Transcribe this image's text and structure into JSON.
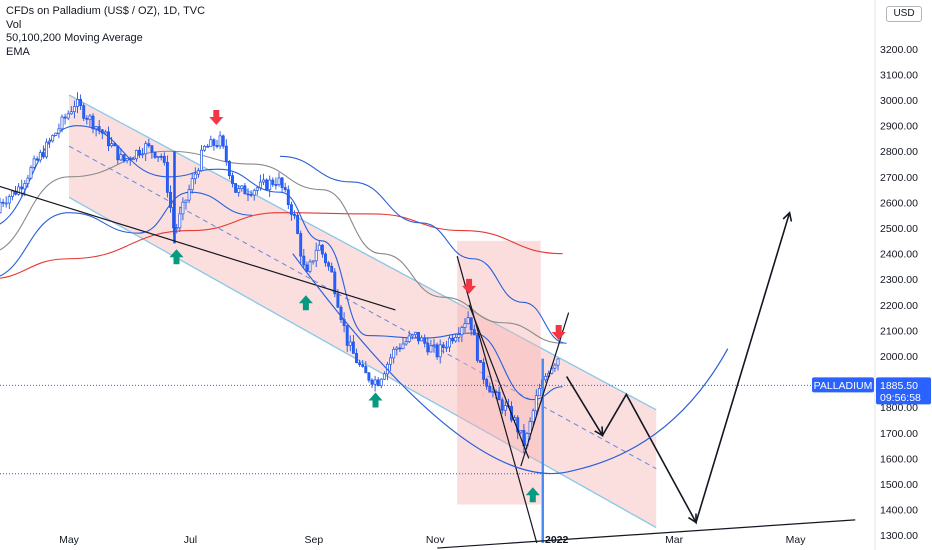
{
  "legend": {
    "title": "CFDs on Palladium (US$ / OZ), 1D, TVC",
    "vol": "Vol",
    "ma": "50,100,200 Moving Average",
    "ema": "EMA"
  },
  "currency_badge": "USD",
  "colors": {
    "up": "#2962ff",
    "down": "#2962ff",
    "channel_fill": "#f9d4d4",
    "channel_line": "#88c6e8",
    "ma_red": "#e53935",
    "ma_grey": "#8a8a8a",
    "ema_blue": "#2b5fd9",
    "arrow_red": "#f23645",
    "arrow_green": "#089981",
    "price_badge": "#2962ff"
  },
  "chart_data": {
    "type": "candlestick",
    "title": "CFDs on Palladium (US$ / OZ), 1D, TVC",
    "ylim": [
      1270,
      3340
    ],
    "y_ticks": [
      "3200.00",
      "3100.00",
      "3000.00",
      "2900.00",
      "2800.00",
      "2700.00",
      "2600.00",
      "2500.00",
      "2400.00",
      "2300.00",
      "2200.00",
      "2100.00",
      "2000.00",
      "1900.00",
      "1800.00",
      "1700.00",
      "1600.00",
      "1500.00",
      "1400.00",
      "1300.00"
    ],
    "x_ticks": [
      "May",
      "Jul",
      "Sep",
      "Nov",
      "2022",
      "Mar",
      "May"
    ],
    "last_price": {
      "label": "PALLADIUM",
      "value": "1885.50",
      "countdown": "09:56:58"
    },
    "level_line": 1540,
    "price_keypoints": [
      {
        "date": "2021-03-20",
        "price": 2560
      },
      {
        "date": "2021-04-05",
        "price": 2650
      },
      {
        "date": "2021-04-20",
        "price": 2820
      },
      {
        "date": "2021-05-04",
        "price": 2990
      },
      {
        "date": "2021-05-18",
        "price": 2870
      },
      {
        "date": "2021-05-28",
        "price": 2760
      },
      {
        "date": "2021-06-08",
        "price": 2820
      },
      {
        "date": "2021-06-17",
        "price": 2780
      },
      {
        "date": "2021-06-23",
        "price": 2480
      },
      {
        "date": "2021-06-30",
        "price": 2640
      },
      {
        "date": "2021-07-08",
        "price": 2810
      },
      {
        "date": "2021-07-16",
        "price": 2840
      },
      {
        "date": "2021-07-24",
        "price": 2640
      },
      {
        "date": "2021-08-05",
        "price": 2660
      },
      {
        "date": "2021-08-14",
        "price": 2690
      },
      {
        "date": "2021-08-22",
        "price": 2550
      },
      {
        "date": "2021-08-28",
        "price": 2300
      },
      {
        "date": "2021-09-03",
        "price": 2440
      },
      {
        "date": "2021-09-10",
        "price": 2320
      },
      {
        "date": "2021-09-18",
        "price": 2050
      },
      {
        "date": "2021-09-26",
        "price": 1930
      },
      {
        "date": "2021-10-03",
        "price": 1900
      },
      {
        "date": "2021-10-12",
        "price": 2030
      },
      {
        "date": "2021-10-22",
        "price": 2080
      },
      {
        "date": "2021-11-02",
        "price": 2010
      },
      {
        "date": "2021-11-12",
        "price": 2100
      },
      {
        "date": "2021-11-18",
        "price": 2160
      },
      {
        "date": "2021-11-24",
        "price": 1940
      },
      {
        "date": "2021-12-02",
        "price": 1830
      },
      {
        "date": "2021-12-10",
        "price": 1760
      },
      {
        "date": "2021-12-16",
        "price": 1650
      },
      {
        "date": "2021-12-22",
        "price": 1840
      },
      {
        "date": "2021-12-28",
        "price": 1950
      },
      {
        "date": "2022-01-03",
        "price": 2010
      }
    ],
    "ma200": [
      {
        "date": "2021-03-20",
        "price": 2300
      },
      {
        "date": "2021-05-01",
        "price": 2380
      },
      {
        "date": "2021-07-01",
        "price": 2490
      },
      {
        "date": "2021-08-15",
        "price": 2560
      },
      {
        "date": "2021-10-01",
        "price": 2555
      },
      {
        "date": "2021-11-15",
        "price": 2490
      },
      {
        "date": "2022-01-04",
        "price": 2400
      }
    ],
    "ma100": [
      {
        "date": "2021-03-20",
        "price": 2400
      },
      {
        "date": "2021-05-01",
        "price": 2700
      },
      {
        "date": "2021-06-20",
        "price": 2800
      },
      {
        "date": "2021-08-01",
        "price": 2750
      },
      {
        "date": "2021-09-05",
        "price": 2650
      },
      {
        "date": "2021-10-05",
        "price": 2400
      },
      {
        "date": "2021-11-05",
        "price": 2230
      },
      {
        "date": "2021-12-05",
        "price": 2130
      },
      {
        "date": "2022-01-04",
        "price": 2050
      }
    ],
    "ema": [
      {
        "date": "2021-03-20",
        "price": 2500
      },
      {
        "date": "2021-05-05",
        "price": 2900
      },
      {
        "date": "2021-06-20",
        "price": 2700
      },
      {
        "date": "2021-07-15",
        "price": 2730
      },
      {
        "date": "2021-08-15",
        "price": 2640
      },
      {
        "date": "2021-09-05",
        "price": 2450
      },
      {
        "date": "2021-09-28",
        "price": 2080
      },
      {
        "date": "2021-10-25",
        "price": 2070
      },
      {
        "date": "2021-11-20",
        "price": 2090
      },
      {
        "date": "2021-12-20",
        "price": 1830
      },
      {
        "date": "2022-01-04",
        "price": 1880
      }
    ],
    "ema_upper": [
      {
        "date": "2021-08-15",
        "price": 2780
      },
      {
        "date": "2021-09-20",
        "price": 2680
      },
      {
        "date": "2021-10-25",
        "price": 2520
      },
      {
        "date": "2021-11-20",
        "price": 2380
      },
      {
        "date": "2021-12-15",
        "price": 2210
      },
      {
        "date": "2022-01-06",
        "price": 2050
      }
    ],
    "ema_lower_curve": [
      {
        "date": "2021-03-20",
        "price": 2300
      },
      {
        "date": "2021-05-01",
        "price": 2560
      },
      {
        "date": "2021-06-05",
        "price": 2480
      },
      {
        "date": "2021-07-01",
        "price": 2640
      },
      {
        "date": "2021-08-01",
        "price": 2550
      }
    ],
    "channel": {
      "upper_start": {
        "date": "2021-05-01",
        "price": 3020
      },
      "upper_end": {
        "date": "2022-02-20",
        "price": 1790
      },
      "lower_start": {
        "date": "2021-05-01",
        "price": 2620
      },
      "lower_end": {
        "date": "2022-02-20",
        "price": 1330
      }
    },
    "trendlines": [
      {
        "from": {
          "date": "2021-03-20",
          "price": 2680
        },
        "to": {
          "date": "2021-10-12",
          "price": 2180
        }
      },
      {
        "from": {
          "date": "2021-11-02",
          "price": 1250
        },
        "to": {
          "date": "2022-05-31",
          "price": 1360
        }
      }
    ],
    "projection_path": [
      {
        "date": "2022-01-06",
        "price": 1920
      },
      {
        "date": "2022-01-24",
        "price": 1690
      },
      {
        "date": "2022-02-05",
        "price": 1850
      },
      {
        "date": "2022-03-12",
        "price": 1350
      },
      {
        "date": "2022-04-28",
        "price": 2560
      }
    ],
    "cup_arc": {
      "center": {
        "date": "2021-12-20",
        "price": 1560
      }
    },
    "signals": [
      {
        "type": "down",
        "date": "2021-07-14",
        "price": 2930
      },
      {
        "type": "up",
        "date": "2021-06-24",
        "price": 2390
      },
      {
        "type": "up",
        "date": "2021-08-28",
        "price": 2210
      },
      {
        "type": "up",
        "date": "2021-10-02",
        "price": 1830
      },
      {
        "type": "down",
        "date": "2021-11-18",
        "price": 2270
      },
      {
        "type": "down",
        "date": "2022-01-02",
        "price": 2090
      },
      {
        "type": "up",
        "date": "2021-12-20",
        "price": 1460
      }
    ]
  }
}
